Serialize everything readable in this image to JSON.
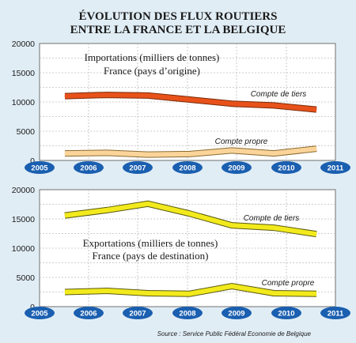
{
  "title_line1": "ÉVOLUTION DES FLUX ROUTIERS",
  "title_line2": "ENTRE LA FRANCE ET LA BELGIQUE",
  "source": "Source : Service Public Fédéral Economie de Belgique",
  "colors": {
    "background": "#e1edf5",
    "panel": "#ffffff",
    "year_badge": "#1a5fb0",
    "imports_tiers_fill": "#e8521a",
    "imports_tiers_edge": "#7a2a08",
    "imports_propre_fill": "#fbd49a",
    "imports_propre_edge": "#8a6a30",
    "exports_fill": "#f2ea1c",
    "exports_edge": "#5a5a10"
  },
  "chart_data": [
    {
      "type": "line",
      "title_line1": "Importations (milliers de tonnes)",
      "title_line2": "France (pays d’origine)",
      "x": [
        "2005",
        "2006",
        "2007",
        "2008",
        "2009",
        "2010",
        "2011"
      ],
      "ylim": [
        0,
        20000
      ],
      "yticks": [
        "0",
        "5000",
        "10000",
        "15000",
        "20000"
      ],
      "grid": true,
      "series": [
        {
          "name": "Compte de tiers",
          "values": [
            11000,
            11200,
            11100,
            10400,
            9700,
            9400,
            8700
          ]
        },
        {
          "name": "Compte propre",
          "values": [
            1200,
            1300,
            1000,
            1100,
            1700,
            1200,
            2000
          ]
        }
      ]
    },
    {
      "type": "line",
      "title_line1": "Exportations (milliers de tonnes)",
      "title_line2": "France (pays de destination)",
      "x": [
        "2005",
        "2006",
        "2007",
        "2008",
        "2009",
        "2010",
        "2011"
      ],
      "ylim": [
        0,
        20000
      ],
      "yticks": [
        "0",
        "5000",
        "10000",
        "15000",
        "20000"
      ],
      "grid": true,
      "series": [
        {
          "name": "Compte de tiers",
          "values": [
            15600,
            16500,
            17600,
            15900,
            13900,
            13500,
            12400
          ]
        },
        {
          "name": "Compte propre",
          "values": [
            2500,
            2700,
            2300,
            2200,
            3500,
            2300,
            2200
          ]
        }
      ]
    }
  ]
}
